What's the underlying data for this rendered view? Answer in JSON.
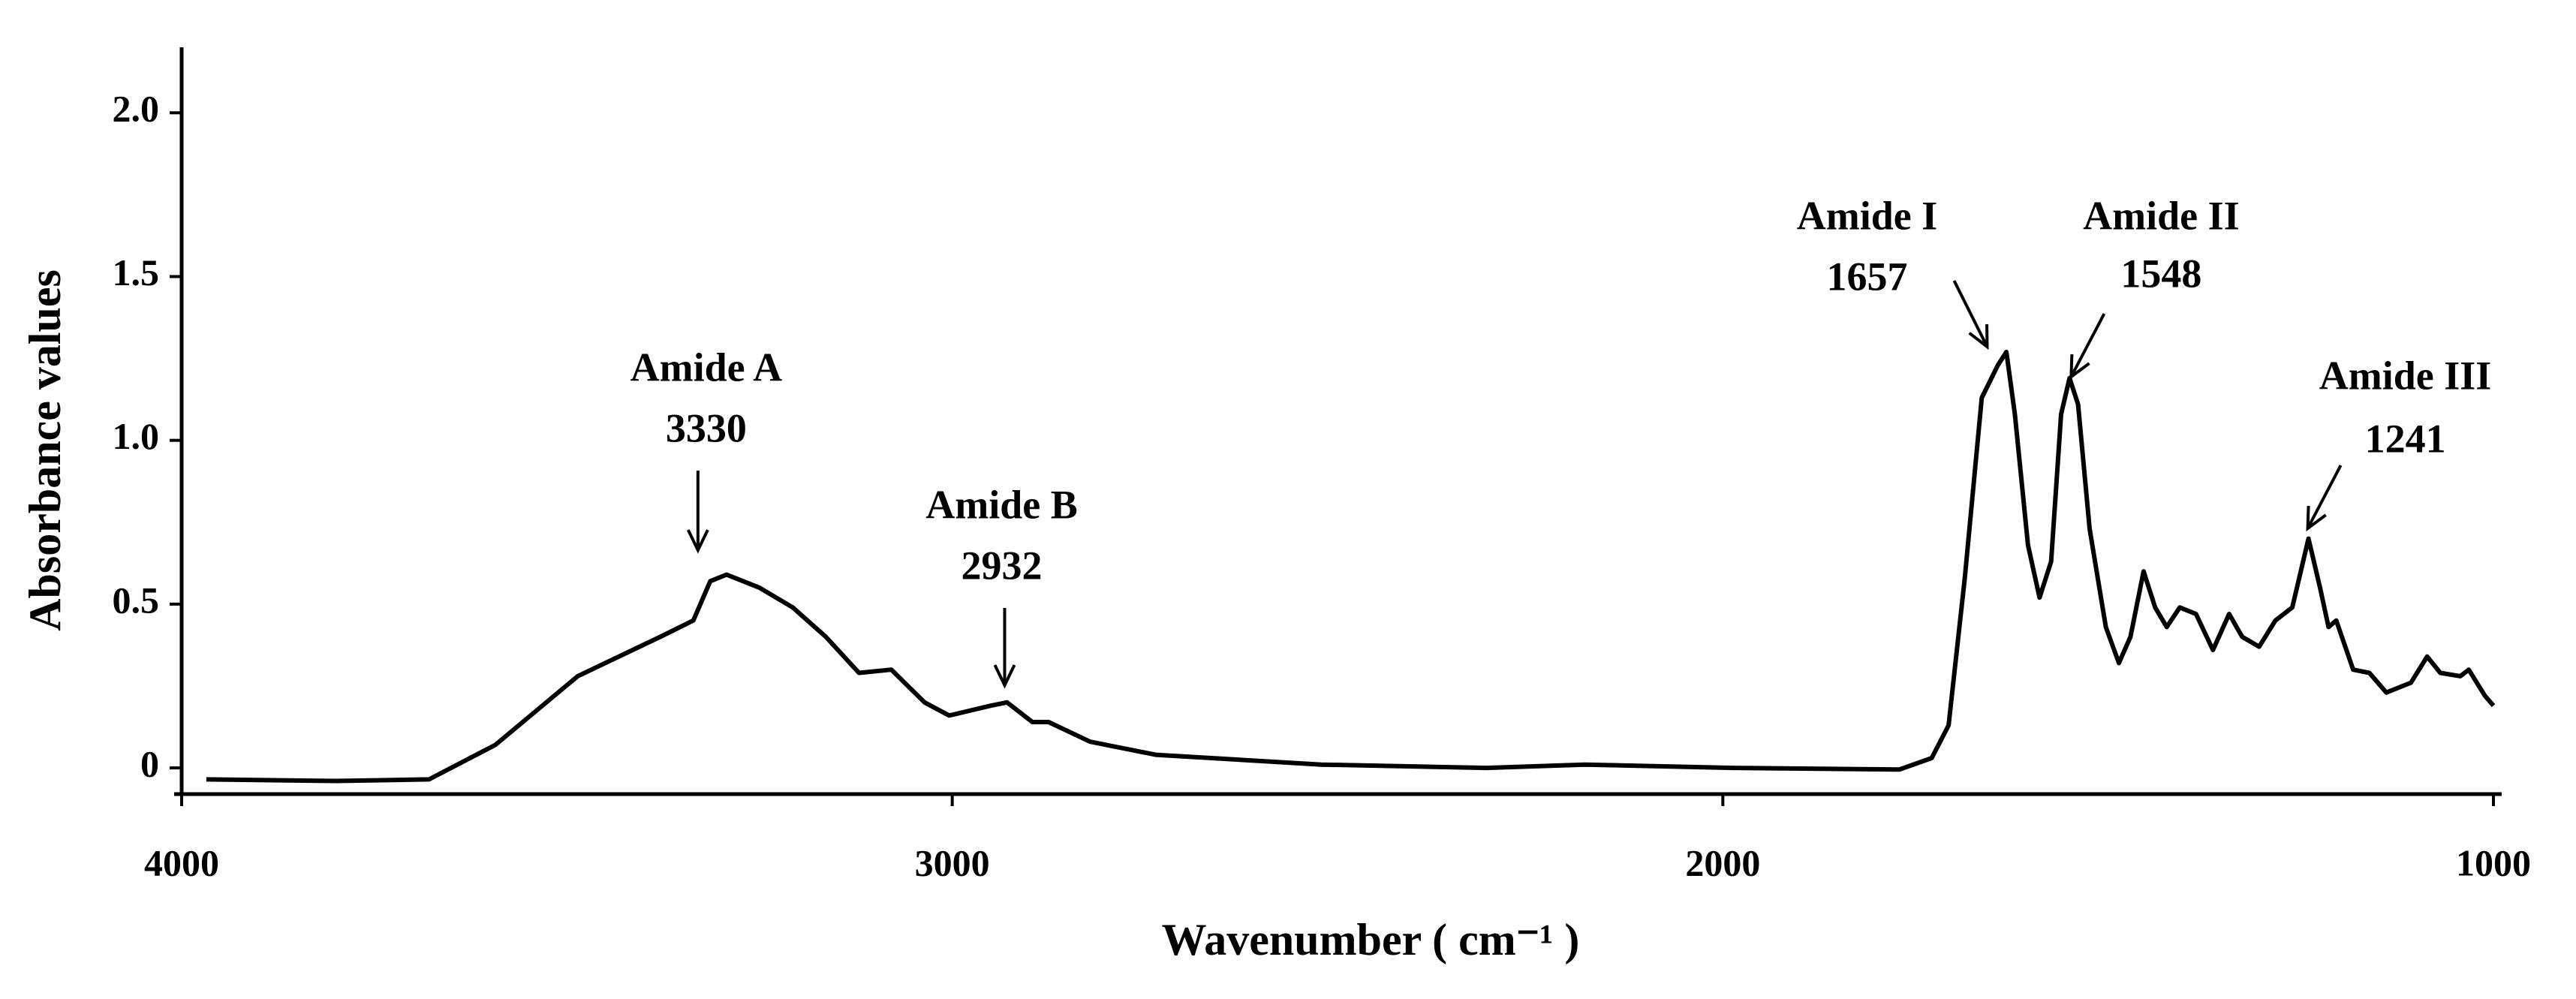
{
  "chart_data": {
    "type": "line",
    "x_label": "Wavenumber ( cm⁻¹ )",
    "y_label": "Absorbance values",
    "color": "#000000",
    "xlim": [
      4000,
      1000
    ],
    "xticks": [
      4000,
      3000,
      2000,
      1000
    ],
    "ylim": [
      -0.08,
      2.2
    ],
    "yticks": [
      0,
      0.5,
      {
        "value": 1,
        "label": "1.0"
      },
      1.5,
      {
        "value": 2,
        "label": "2.0"
      }
    ],
    "x": [
      3968,
      3800,
      3679,
      3593,
      3486,
      3379,
      3336,
      3314,
      3293,
      3250,
      3207,
      3164,
      3121,
      3079,
      3036,
      3004,
      2950,
      2929,
      2896,
      2875,
      2821,
      2736,
      2521,
      2307,
      2179,
      1986,
      1771,
      1729,
      1707,
      1686,
      1664,
      1643,
      1632,
      1621,
      1604,
      1589,
      1574,
      1561,
      1550,
      1539,
      1524,
      1503,
      1486,
      1471,
      1454,
      1439,
      1424,
      1407,
      1386,
      1364,
      1343,
      1326,
      1304,
      1283,
      1261,
      1240,
      1225,
      1214,
      1204,
      1182,
      1161,
      1139,
      1107,
      1086,
      1069,
      1043,
      1032,
      1011,
      1000
    ],
    "values": [
      -0.035,
      -0.04,
      -0.035,
      0.07,
      0.28,
      0.4,
      0.45,
      0.57,
      0.59,
      0.55,
      0.49,
      0.4,
      0.29,
      0.3,
      0.2,
      0.16,
      0.19,
      0.2,
      0.14,
      0.14,
      0.08,
      0.04,
      0.01,
      0,
      0.01,
      0,
      -0.005,
      0.03,
      0.13,
      0.58,
      1.13,
      1.23,
      1.27,
      1.08,
      0.68,
      0.52,
      0.63,
      1.08,
      1.19,
      1.11,
      0.73,
      0.43,
      0.32,
      0.4,
      0.6,
      0.49,
      0.43,
      0.49,
      0.47,
      0.36,
      0.47,
      0.4,
      0.37,
      0.45,
      0.49,
      0.7,
      0.55,
      0.43,
      0.45,
      0.3,
      0.29,
      0.23,
      0.26,
      0.34,
      0.29,
      0.28,
      0.3,
      0.22,
      0.19
    ],
    "annotations": [
      {
        "label": "Amide A",
        "wavenumber": 3330
      },
      {
        "label": "Amide B",
        "wavenumber": 2932
      },
      {
        "label": "Amide I",
        "wavenumber": 1657
      },
      {
        "label": "Amide II",
        "wavenumber": 1548
      },
      {
        "label": "Amide III",
        "wavenumber": 1241
      }
    ]
  }
}
